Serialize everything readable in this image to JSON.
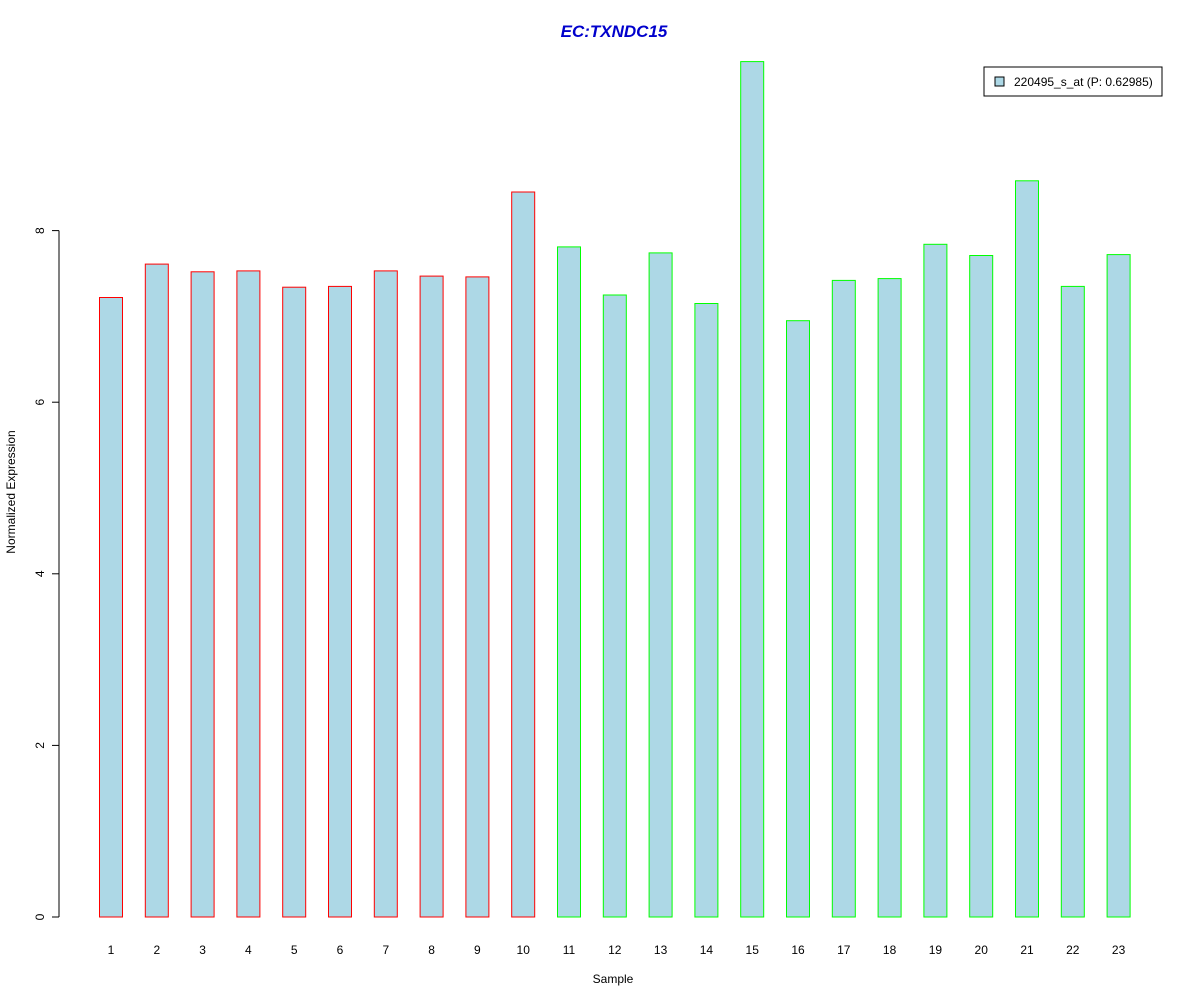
{
  "colors": {
    "bar_fill": "#add8e6",
    "group1_border": "#ff0000",
    "group2_border": "#00ff00",
    "title": "#0000cc",
    "axis": "#000000"
  },
  "chart_data": {
    "type": "bar",
    "title": "EC:TXNDC15",
    "xlabel": "Sample",
    "ylabel": "Normalized Expression",
    "categories": [
      "1",
      "2",
      "3",
      "4",
      "5",
      "6",
      "7",
      "8",
      "9",
      "10",
      "11",
      "12",
      "13",
      "14",
      "15",
      "16",
      "17",
      "18",
      "19",
      "20",
      "21",
      "22",
      "23"
    ],
    "series": [
      {
        "name": "220495_s_at (P: 0.62985)",
        "values": [
          7.22,
          7.61,
          7.52,
          7.53,
          7.34,
          7.35,
          7.53,
          7.47,
          7.46,
          8.45,
          7.81,
          7.25,
          7.74,
          7.15,
          9.97,
          6.95,
          7.42,
          7.44,
          7.84,
          7.71,
          8.58,
          7.35,
          7.72
        ]
      }
    ],
    "groups": [
      "red",
      "red",
      "red",
      "red",
      "red",
      "red",
      "red",
      "red",
      "red",
      "red",
      "green",
      "green",
      "green",
      "green",
      "green",
      "green",
      "green",
      "green",
      "green",
      "green",
      "green",
      "green",
      "green"
    ],
    "yticks": [
      0,
      2,
      4,
      6,
      8
    ],
    "ylim": [
      0,
      10
    ],
    "legend_position": "top-right",
    "grid": false
  }
}
